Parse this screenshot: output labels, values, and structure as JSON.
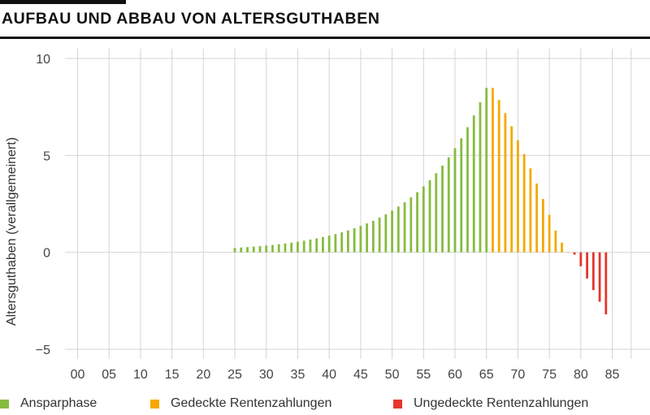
{
  "page": {
    "title": "AUFBAU UND ABBAU VON ALTERSGUTHABEN"
  },
  "chart_data": {
    "type": "bar",
    "title": "AUFBAU UND ABBAU VON ALTERSGUTHABEN",
    "xlabel": "",
    "ylabel": "Altersguthaben (verallgemeinert)",
    "xlim": [
      -2,
      91
    ],
    "ylim": [
      -5.5,
      10.5
    ],
    "x_ticks": [
      0,
      5,
      10,
      15,
      20,
      25,
      30,
      35,
      40,
      45,
      50,
      55,
      60,
      65,
      70,
      75,
      80,
      85
    ],
    "x_tick_labels": [
      "00",
      "05",
      "10",
      "15",
      "20",
      "25",
      "30",
      "35",
      "40",
      "45",
      "50",
      "55",
      "60",
      "65",
      "70",
      "75",
      "80",
      "85"
    ],
    "y_ticks": [
      10,
      5,
      0,
      -5
    ],
    "y_tick_labels": [
      "10",
      "5",
      "0",
      "−5"
    ],
    "grid": true,
    "legend_position": "bottom",
    "series": [
      {
        "name": "Ansparphase",
        "color": "#86bc3f",
        "x": [
          25,
          26,
          27,
          28,
          29,
          30,
          31,
          32,
          33,
          34,
          35,
          36,
          37,
          38,
          39,
          40,
          41,
          42,
          43,
          44,
          45,
          46,
          47,
          48,
          49,
          50,
          51,
          52,
          53,
          54,
          55,
          56,
          57,
          58,
          59,
          60,
          61,
          62,
          63,
          64,
          65
        ],
        "values": [
          0.22,
          0.25,
          0.27,
          0.3,
          0.32,
          0.35,
          0.38,
          0.42,
          0.46,
          0.5,
          0.55,
          0.6,
          0.66,
          0.72,
          0.79,
          0.86,
          0.94,
          1.03,
          1.13,
          1.24,
          1.36,
          1.49,
          1.63,
          1.79,
          1.96,
          2.15,
          2.36,
          2.58,
          2.83,
          3.1,
          3.4,
          3.72,
          4.08,
          4.47,
          4.9,
          5.37,
          5.88,
          6.45,
          7.06,
          7.74,
          8.48
        ]
      },
      {
        "name": "Gedeckte Rentenzahlungen",
        "color": "#f5a900",
        "x": [
          66,
          67,
          68,
          69,
          70,
          71,
          72,
          73,
          74,
          75,
          76,
          77,
          78
        ],
        "values": [
          8.48,
          7.85,
          7.18,
          6.5,
          5.78,
          5.07,
          4.33,
          3.55,
          2.75,
          1.93,
          1.12,
          0.5,
          0.0
        ]
      },
      {
        "name": "Ungedeckte Rentenzahlungen",
        "color": "#e5352c",
        "x": [
          79,
          80,
          81,
          82,
          83,
          84
        ],
        "values": [
          -0.12,
          -0.72,
          -1.35,
          -1.95,
          -2.55,
          -3.2
        ]
      }
    ]
  }
}
